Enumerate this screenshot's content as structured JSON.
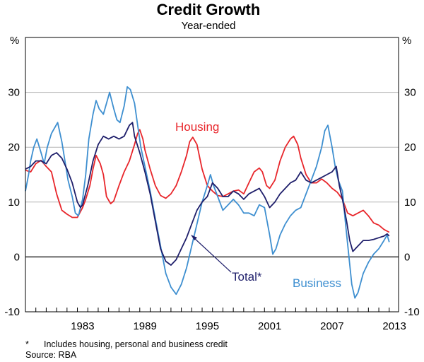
{
  "chart_data": {
    "type": "line",
    "title": "Credit Growth",
    "subtitle": "Year-ended",
    "y_unit": "%",
    "ylim": [
      -10,
      40
    ],
    "xlim": [
      1977.5,
      2013.4
    ],
    "yticks": [
      -10,
      0,
      10,
      20,
      30
    ],
    "xticks": [
      1983,
      1989,
      1995,
      2001,
      2007,
      2013
    ],
    "minor_xticks_years": [
      1978,
      1979,
      1980,
      1981,
      1982,
      1983,
      1984,
      1985,
      1986,
      1987,
      1988,
      1989,
      1990,
      1991,
      1992,
      1993,
      1994,
      1995,
      1996,
      1997,
      1998,
      1999,
      2000,
      2001,
      2002,
      2003,
      2004,
      2005,
      2006,
      2007,
      2008,
      2009,
      2010,
      2011,
      2012,
      2013
    ],
    "grid": true,
    "series": [
      {
        "name": "Housing",
        "label": "Housing",
        "color": "#e8262b",
        "points": [
          [
            1977.5,
            15.8
          ],
          [
            1978.0,
            15.5
          ],
          [
            1978.5,
            17.0
          ],
          [
            1979.0,
            17.6
          ],
          [
            1979.5,
            16.5
          ],
          [
            1980.0,
            15.5
          ],
          [
            1980.5,
            11.5
          ],
          [
            1981.0,
            8.5
          ],
          [
            1981.5,
            7.8
          ],
          [
            1982.0,
            7.2
          ],
          [
            1982.5,
            7.2
          ],
          [
            1983.0,
            9.0
          ],
          [
            1983.3,
            10.5
          ],
          [
            1983.7,
            13.0
          ],
          [
            1984.0,
            16.0
          ],
          [
            1984.3,
            18.5
          ],
          [
            1984.7,
            17.0
          ],
          [
            1985.0,
            15.0
          ],
          [
            1985.3,
            11.0
          ],
          [
            1985.7,
            9.7
          ],
          [
            1986.0,
            10.2
          ],
          [
            1986.5,
            13.0
          ],
          [
            1987.0,
            15.5
          ],
          [
            1987.5,
            17.5
          ],
          [
            1988.0,
            20.5
          ],
          [
            1988.3,
            22.5
          ],
          [
            1988.5,
            23.2
          ],
          [
            1988.8,
            21.5
          ],
          [
            1989.0,
            19.5
          ],
          [
            1989.5,
            16.0
          ],
          [
            1990.0,
            13.0
          ],
          [
            1990.5,
            11.2
          ],
          [
            1991.0,
            10.7
          ],
          [
            1991.5,
            11.5
          ],
          [
            1992.0,
            13.0
          ],
          [
            1992.5,
            15.5
          ],
          [
            1993.0,
            18.5
          ],
          [
            1993.3,
            21.0
          ],
          [
            1993.6,
            21.8
          ],
          [
            1994.0,
            20.5
          ],
          [
            1994.5,
            16.0
          ],
          [
            1995.0,
            13.0
          ],
          [
            1995.5,
            12.0
          ],
          [
            1996.0,
            11.2
          ],
          [
            1996.5,
            11.0
          ],
          [
            1997.0,
            11.5
          ],
          [
            1997.5,
            12.0
          ],
          [
            1998.0,
            12.2
          ],
          [
            1998.5,
            11.5
          ],
          [
            1999.0,
            13.5
          ],
          [
            1999.5,
            15.5
          ],
          [
            2000.0,
            16.2
          ],
          [
            2000.3,
            15.5
          ],
          [
            2000.7,
            13.0
          ],
          [
            2001.0,
            12.5
          ],
          [
            2001.5,
            14.0
          ],
          [
            2002.0,
            17.5
          ],
          [
            2002.5,
            20.0
          ],
          [
            2003.0,
            21.5
          ],
          [
            2003.3,
            22.0
          ],
          [
            2003.7,
            20.5
          ],
          [
            2004.0,
            18.0
          ],
          [
            2004.5,
            15.0
          ],
          [
            2005.0,
            13.5
          ],
          [
            2005.5,
            13.5
          ],
          [
            2006.0,
            14.2
          ],
          [
            2006.5,
            13.5
          ],
          [
            2007.0,
            12.5
          ],
          [
            2007.5,
            11.8
          ],
          [
            2008.0,
            10.5
          ],
          [
            2008.5,
            8.0
          ],
          [
            2009.0,
            7.5
          ],
          [
            2009.5,
            8.0
          ],
          [
            2010.0,
            8.5
          ],
          [
            2010.5,
            7.5
          ],
          [
            2011.0,
            6.2
          ],
          [
            2011.5,
            5.8
          ],
          [
            2012.0,
            5.0
          ],
          [
            2012.5,
            4.5
          ]
        ]
      },
      {
        "name": "Business",
        "label": "Business",
        "color": "#3e8fd0",
        "points": [
          [
            1977.5,
            12.0
          ],
          [
            1977.8,
            15.0
          ],
          [
            1978.0,
            17.5
          ],
          [
            1978.3,
            20.0
          ],
          [
            1978.6,
            21.5
          ],
          [
            1979.0,
            19.0
          ],
          [
            1979.3,
            17.0
          ],
          [
            1979.6,
            20.0
          ],
          [
            1980.0,
            22.5
          ],
          [
            1980.3,
            23.5
          ],
          [
            1980.6,
            24.5
          ],
          [
            1981.0,
            21.0
          ],
          [
            1981.3,
            17.5
          ],
          [
            1981.6,
            14.0
          ],
          [
            1982.0,
            11.0
          ],
          [
            1982.3,
            8.0
          ],
          [
            1982.6,
            7.5
          ],
          [
            1983.0,
            10.5
          ],
          [
            1983.3,
            15.0
          ],
          [
            1983.6,
            21.5
          ],
          [
            1984.0,
            26.0
          ],
          [
            1984.3,
            28.5
          ],
          [
            1984.6,
            27.0
          ],
          [
            1985.0,
            26.0
          ],
          [
            1985.3,
            28.0
          ],
          [
            1985.6,
            30.0
          ],
          [
            1986.0,
            27.0
          ],
          [
            1986.3,
            25.0
          ],
          [
            1986.6,
            24.5
          ],
          [
            1987.0,
            27.5
          ],
          [
            1987.3,
            31.0
          ],
          [
            1987.6,
            30.5
          ],
          [
            1988.0,
            28.0
          ],
          [
            1988.3,
            24.0
          ],
          [
            1988.6,
            20.0
          ],
          [
            1989.0,
            16.5
          ],
          [
            1989.5,
            12.0
          ],
          [
            1990.0,
            7.0
          ],
          [
            1990.5,
            2.0
          ],
          [
            1991.0,
            -3.0
          ],
          [
            1991.5,
            -5.5
          ],
          [
            1992.0,
            -6.8
          ],
          [
            1992.5,
            -5.0
          ],
          [
            1993.0,
            -2.0
          ],
          [
            1993.5,
            2.0
          ],
          [
            1994.0,
            6.0
          ],
          [
            1994.5,
            10.0
          ],
          [
            1995.0,
            13.0
          ],
          [
            1995.3,
            15.0
          ],
          [
            1995.6,
            13.0
          ],
          [
            1996.0,
            11.0
          ],
          [
            1996.5,
            8.5
          ],
          [
            1997.0,
            9.5
          ],
          [
            1997.5,
            10.5
          ],
          [
            1998.0,
            9.5
          ],
          [
            1998.5,
            8.0
          ],
          [
            1999.0,
            8.0
          ],
          [
            1999.5,
            7.5
          ],
          [
            2000.0,
            9.5
          ],
          [
            2000.5,
            9.0
          ],
          [
            2001.0,
            4.0
          ],
          [
            2001.3,
            0.5
          ],
          [
            2001.6,
            1.5
          ],
          [
            2002.0,
            4.0
          ],
          [
            2002.5,
            6.0
          ],
          [
            2003.0,
            7.5
          ],
          [
            2003.5,
            8.5
          ],
          [
            2004.0,
            9.0
          ],
          [
            2004.5,
            11.5
          ],
          [
            2005.0,
            14.0
          ],
          [
            2005.5,
            16.5
          ],
          [
            2006.0,
            20.0
          ],
          [
            2006.3,
            23.0
          ],
          [
            2006.6,
            24.0
          ],
          [
            2007.0,
            20.0
          ],
          [
            2007.3,
            16.5
          ],
          [
            2007.6,
            14.0
          ],
          [
            2008.0,
            12.0
          ],
          [
            2008.3,
            6.0
          ],
          [
            2008.6,
            0.5
          ],
          [
            2008.9,
            -5.0
          ],
          [
            2009.2,
            -7.5
          ],
          [
            2009.5,
            -6.5
          ],
          [
            2010.0,
            -3.0
          ],
          [
            2010.5,
            -1.0
          ],
          [
            2011.0,
            0.5
          ],
          [
            2011.5,
            1.5
          ],
          [
            2012.0,
            3.0
          ],
          [
            2012.3,
            4.0
          ],
          [
            2012.5,
            2.7
          ]
        ]
      },
      {
        "name": "Total",
        "label": "Total*",
        "color": "#1f1f6b",
        "points": [
          [
            1977.5,
            16.0
          ],
          [
            1978.0,
            16.5
          ],
          [
            1978.5,
            17.5
          ],
          [
            1979.0,
            17.5
          ],
          [
            1979.5,
            17.0
          ],
          [
            1980.0,
            18.5
          ],
          [
            1980.5,
            19.0
          ],
          [
            1981.0,
            18.0
          ],
          [
            1981.5,
            16.0
          ],
          [
            1982.0,
            13.5
          ],
          [
            1982.5,
            10.0
          ],
          [
            1982.8,
            9.0
          ],
          [
            1983.0,
            9.5
          ],
          [
            1983.5,
            13.0
          ],
          [
            1984.0,
            17.5
          ],
          [
            1984.5,
            20.5
          ],
          [
            1985.0,
            22.0
          ],
          [
            1985.5,
            21.5
          ],
          [
            1986.0,
            22.0
          ],
          [
            1986.5,
            21.5
          ],
          [
            1987.0,
            22.0
          ],
          [
            1987.5,
            24.0
          ],
          [
            1987.8,
            24.5
          ],
          [
            1988.0,
            22.0
          ],
          [
            1988.5,
            19.0
          ],
          [
            1989.0,
            15.5
          ],
          [
            1989.5,
            11.5
          ],
          [
            1990.0,
            6.5
          ],
          [
            1990.5,
            1.5
          ],
          [
            1991.0,
            -0.8
          ],
          [
            1991.5,
            -1.5
          ],
          [
            1992.0,
            -0.5
          ],
          [
            1992.5,
            1.5
          ],
          [
            1993.0,
            3.5
          ],
          [
            1993.5,
            6.0
          ],
          [
            1994.0,
            8.5
          ],
          [
            1994.5,
            10.0
          ],
          [
            1995.0,
            11.0
          ],
          [
            1995.5,
            13.5
          ],
          [
            1996.0,
            12.5
          ],
          [
            1996.5,
            11.0
          ],
          [
            1997.0,
            11.0
          ],
          [
            1997.5,
            12.0
          ],
          [
            1998.0,
            11.5
          ],
          [
            1998.5,
            10.5
          ],
          [
            1999.0,
            11.5
          ],
          [
            1999.5,
            12.0
          ],
          [
            2000.0,
            12.5
          ],
          [
            2000.5,
            11.0
          ],
          [
            2001.0,
            9.0
          ],
          [
            2001.5,
            10.0
          ],
          [
            2002.0,
            11.5
          ],
          [
            2002.5,
            12.5
          ],
          [
            2003.0,
            13.5
          ],
          [
            2003.5,
            14.0
          ],
          [
            2004.0,
            15.5
          ],
          [
            2004.5,
            14.0
          ],
          [
            2005.0,
            13.5
          ],
          [
            2005.5,
            14.0
          ],
          [
            2006.0,
            14.5
          ],
          [
            2006.5,
            15.0
          ],
          [
            2007.0,
            15.5
          ],
          [
            2007.4,
            16.5
          ],
          [
            2007.7,
            13.0
          ],
          [
            2008.0,
            10.5
          ],
          [
            2008.4,
            6.5
          ],
          [
            2008.7,
            3.0
          ],
          [
            2009.0,
            1.0
          ],
          [
            2009.5,
            2.0
          ],
          [
            2010.0,
            3.0
          ],
          [
            2010.5,
            3.0
          ],
          [
            2011.0,
            3.2
          ],
          [
            2011.5,
            3.5
          ],
          [
            2012.0,
            3.8
          ],
          [
            2012.3,
            4.2
          ],
          [
            2012.5,
            3.8
          ]
        ]
      }
    ],
    "annotations": {
      "housing_label": "Housing",
      "business_label": "Business",
      "total_label": "Total*",
      "total_arrow_target": [
        1993.5,
        4.0
      ]
    },
    "notes": {
      "footnote_marker": "*",
      "footnote_text": "Includes housing, personal and business credit",
      "source": "Source: RBA"
    }
  }
}
